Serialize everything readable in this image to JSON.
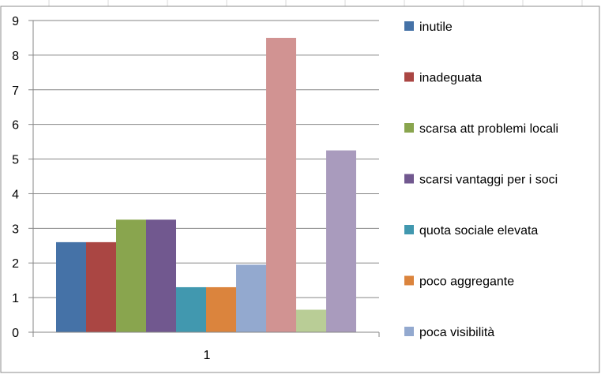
{
  "chart_data": {
    "type": "bar",
    "categories": [
      "1"
    ],
    "series": [
      {
        "name": "inutile",
        "values": [
          2.6
        ],
        "color": "#4572A7"
      },
      {
        "name": "inadeguata",
        "values": [
          2.6
        ],
        "color": "#AA4643"
      },
      {
        "name": "scarsa att problemi locali",
        "values": [
          3.25
        ],
        "color": "#89A54E"
      },
      {
        "name": "scarsi vantaggi per i soci",
        "values": [
          3.25
        ],
        "color": "#71588F"
      },
      {
        "name": "quota sociale elevata",
        "values": [
          1.3
        ],
        "color": "#4198AF"
      },
      {
        "name": "poco aggregante",
        "values": [
          1.3
        ],
        "color": "#DB843D"
      },
      {
        "name": "poca visibilità",
        "values": [
          1.95
        ],
        "color": "#93A9CF"
      },
      {
        "name": "",
        "values": [
          8.5
        ],
        "color": "#D19392"
      },
      {
        "name": "",
        "values": [
          0.65
        ],
        "color": "#B9CD96"
      },
      {
        "name": "",
        "values": [
          5.25
        ],
        "color": "#A99BBD"
      }
    ],
    "ylim": [
      0,
      9
    ],
    "yticks": [
      "0",
      "1",
      "2",
      "3",
      "4",
      "5",
      "6",
      "7",
      "8",
      "9"
    ],
    "grid": true,
    "legend_position": "right",
    "title": "",
    "xlabel": "",
    "ylabel": ""
  }
}
